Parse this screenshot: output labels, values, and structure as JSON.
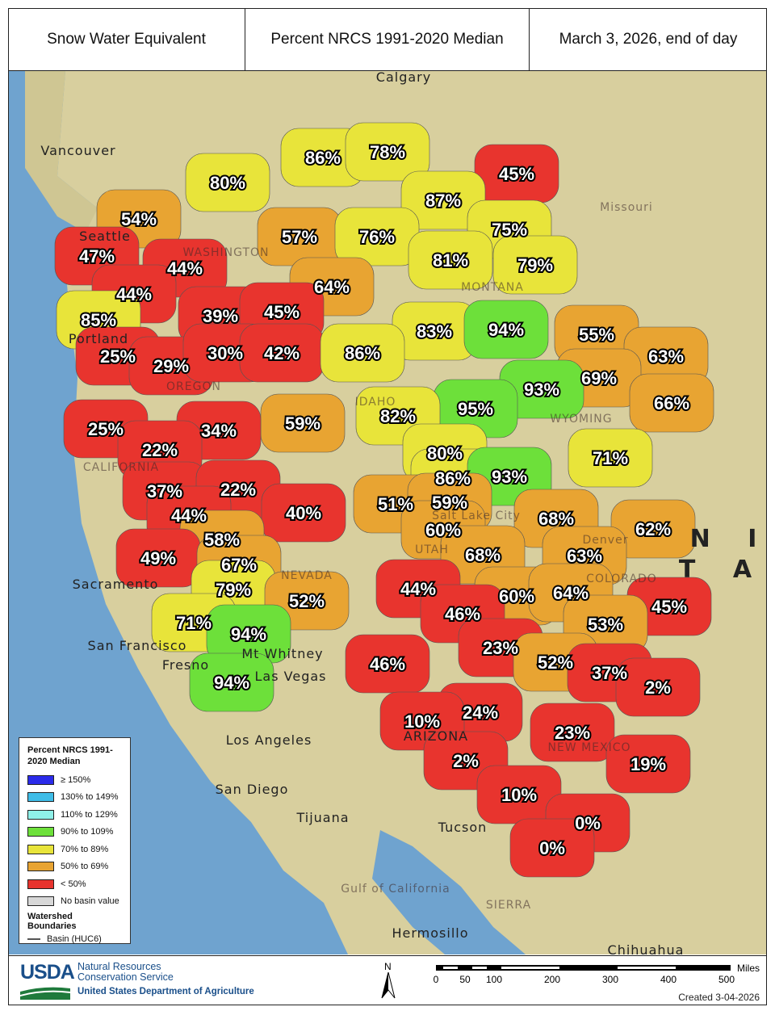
{
  "header": {
    "title": "Snow Water Equivalent",
    "metric": "Percent NRCS 1991-2020 Median",
    "date": "March 3, 2026, end of day"
  },
  "colors": {
    "gte150": "#2b2bea",
    "130_149": "#3fbde8",
    "110_129": "#8ff0e8",
    "90_109": "#6de03a",
    "70_89": "#e8e43a",
    "50_69": "#e8a432",
    "lt50": "#e8342e",
    "none": "#d8d8d8",
    "ocean": "#6fa3cf",
    "land": "#d8cf9e"
  },
  "legend": {
    "title": "Percent NRCS 1991-2020 Median",
    "items": [
      {
        "label": "≥ 150%",
        "color": "#2b2bea"
      },
      {
        "label": "130% to 149%",
        "color": "#3fbde8"
      },
      {
        "label": "110% to 129%",
        "color": "#8ff0e8"
      },
      {
        "label": "90% to 109%",
        "color": "#6de03a"
      },
      {
        "label": "70% to 89%",
        "color": "#e8e43a"
      },
      {
        "label": "50% to 69%",
        "color": "#e8a432"
      },
      {
        "label": "< 50%",
        "color": "#e8342e"
      },
      {
        "label": "No basin value",
        "color": "#d8d8d8"
      }
    ],
    "boundaries_title": "Watershed Boundaries",
    "boundary_item": "Basin (HUC6)"
  },
  "basins": [
    86,
    78,
    45,
    80,
    54,
    87,
    57,
    76,
    75,
    47,
    44,
    81,
    79,
    64,
    44,
    39,
    45,
    85,
    83,
    94,
    55,
    25,
    29,
    30,
    42,
    86,
    63,
    69,
    93,
    95,
    66,
    82,
    59,
    25,
    34,
    22,
    80,
    71,
    86,
    93,
    37,
    22,
    51,
    59,
    40,
    68,
    44,
    60,
    58,
    62,
    49,
    67,
    68,
    63,
    79,
    44,
    52,
    60,
    64,
    45,
    71,
    94,
    46,
    53,
    23,
    52,
    46,
    37,
    94,
    2,
    24,
    10,
    23,
    19,
    2,
    10,
    0,
    0
  ],
  "places": [
    "Calgary",
    "Vancouver",
    "Seattle",
    "Portland",
    "Sacramento",
    "San Francisco",
    "Fresno",
    "Mt Whitney",
    "Las Vegas",
    "Los Angeles",
    "San Diego",
    "Tijuana",
    "Tucson",
    "Hermosillo",
    "Chihuahua",
    "Salt Lake City",
    "Denver",
    "Missouri",
    "Gulf of California",
    "SIERRA",
    "WASHINGTON",
    "OREGON",
    "IDAHO",
    "MONTANA",
    "WYOMING",
    "UTAH",
    "NEVADA",
    "CALIFORNIA",
    "COLORADO",
    "ARIZONA",
    "NEW MEXICO",
    "N I",
    "T A"
  ],
  "footer": {
    "logo": "USDA",
    "agency_line1": "Natural Resources",
    "agency_line2": "Conservation Service",
    "department": "United States Department of Agriculture",
    "north": "N",
    "scale_unit": "Miles",
    "scale_ticks": [
      "0",
      "50",
      "100",
      "200",
      "300",
      "400",
      "500"
    ],
    "created": "Created 3-04-2026"
  }
}
